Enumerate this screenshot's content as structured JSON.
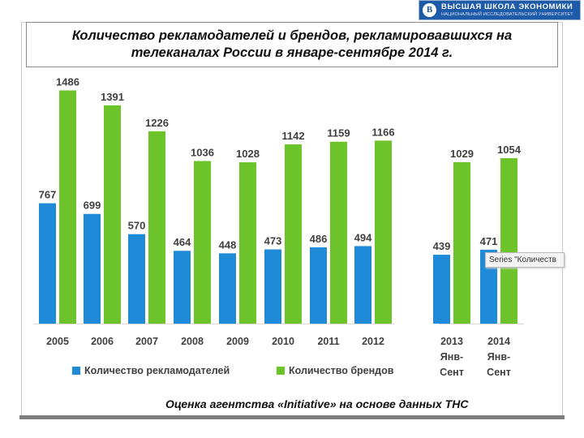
{
  "logo": {
    "title": "ВЫСШАЯ ШКОЛА ЭКОНОМИКИ",
    "subtitle": "НАЦИОНАЛЬНЫЙ ИССЛЕДОВАТЕЛЬСКИЙ УНИВЕРСИТЕТ",
    "emblem": "В"
  },
  "tooltip": {
    "text": "Series \"Количеств"
  },
  "source_note": "Оценка агентства «Initiative» на основе данных ТНС",
  "chart_data": {
    "type": "bar",
    "title": "Количество рекламодателей и брендов, рекламировавшихся на телеканалах России в январе-сентябре 2014 г.",
    "categories": [
      "2005",
      "2006",
      "2007",
      "2008",
      "2009",
      "2010",
      "2011",
      "2012",
      "2013 Янв-Сент",
      "2014 Янв-Сент"
    ],
    "category_lines": [
      [
        "2005"
      ],
      [
        "2006"
      ],
      [
        "2007"
      ],
      [
        "2008"
      ],
      [
        "2009"
      ],
      [
        "2010"
      ],
      [
        "2011"
      ],
      [
        "2012"
      ],
      [
        "2013",
        "Янв-",
        "Сент"
      ],
      [
        "2014",
        "Янв-",
        "Сент"
      ]
    ],
    "series": [
      {
        "name": "Количество рекламодателей",
        "color": "#1f8ad8",
        "values": [
          767,
          699,
          570,
          464,
          448,
          473,
          486,
          494,
          439,
          471
        ]
      },
      {
        "name": "Количество брендов",
        "color": "#6cc42a",
        "values": [
          1486,
          1391,
          1226,
          1036,
          1028,
          1142,
          1159,
          1166,
          1029,
          1054
        ]
      }
    ],
    "ylim": [
      0,
      1600
    ],
    "grid": false,
    "legend_position": "bottom-left"
  }
}
